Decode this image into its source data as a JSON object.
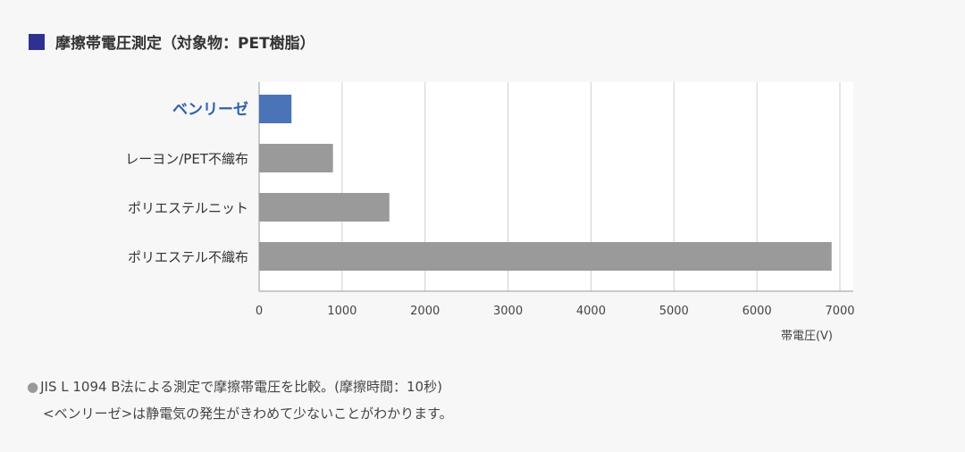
{
  "header": {
    "title": "摩擦帯電圧測定（対象物：PET樹脂）",
    "marker_color": "#2e3192"
  },
  "chart_data": {
    "type": "bar",
    "orientation": "horizontal",
    "categories": [
      "ベンリーゼ",
      "レーヨン/PET不織布",
      "ポリエステルニット",
      "ポリエステル不織布"
    ],
    "values": [
      390,
      890,
      1570,
      6900
    ],
    "colors": [
      "#4a73b8",
      "#9a9a9a",
      "#9a9a9a",
      "#9a9a9a"
    ],
    "highlight_label_color": "#2f5fae",
    "xlabel": "帯電圧(V)",
    "xlim": [
      0,
      7000
    ],
    "xticks": [
      0,
      1000,
      2000,
      3000,
      4000,
      5000,
      6000,
      7000
    ],
    "grid": true
  },
  "notes": {
    "bullet": "●",
    "line1": "JIS L 1094 B法による測定で摩擦帯電圧を比較。(摩擦時間：10秒)",
    "line2": "<ベンリーゼ>は静電気の発生がきわめて少ないことがわかります。"
  }
}
